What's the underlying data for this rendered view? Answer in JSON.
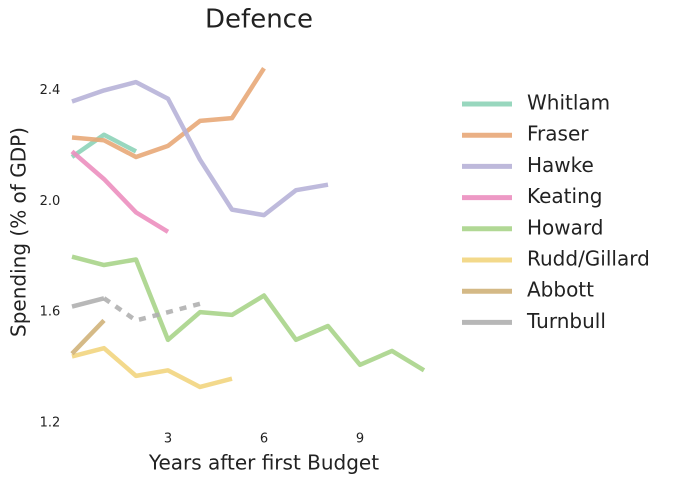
{
  "chart_data": {
    "type": "line",
    "title": "Defence",
    "x_label": "Years after first Budget",
    "y_label": "Spending (% of GDP)",
    "x": [
      0,
      1,
      2,
      3,
      4,
      5,
      6,
      7,
      8,
      9,
      10,
      11
    ],
    "xlim": [
      0,
      11
    ],
    "ylim": [
      1.2,
      2.6
    ],
    "xticks": [
      3,
      6,
      9
    ],
    "yticks": [
      1.2,
      1.6,
      {
        "value": 2,
        "label": "2.0"
      },
      2.4
    ],
    "grid": false,
    "legend": "right",
    "series": [
      {
        "name": "Whitlam",
        "color": "#8dd3b8",
        "values": [
          2.16,
          2.24,
          2.18,
          null,
          null,
          null,
          null,
          null,
          null,
          null,
          null,
          null
        ]
      },
      {
        "name": "Fraser",
        "color": "#e8a878",
        "values": [
          2.23,
          2.22,
          2.16,
          2.2,
          2.29,
          2.3,
          2.48,
          null,
          null,
          null,
          null,
          null
        ]
      },
      {
        "name": "Hawke",
        "color": "#b7b2d8",
        "values": [
          2.36,
          2.4,
          2.43,
          2.37,
          2.15,
          1.97,
          1.95,
          2.04,
          2.06,
          null,
          null,
          null
        ]
      },
      {
        "name": "Keating",
        "color": "#ec8fbf",
        "values": [
          2.18,
          2.08,
          1.96,
          1.89,
          null,
          null,
          null,
          null,
          null,
          null,
          null,
          null
        ]
      },
      {
        "name": "Howard",
        "color": "#a9d48a",
        "values": [
          1.8,
          1.77,
          1.79,
          1.5,
          1.6,
          1.59,
          1.66,
          1.5,
          1.55,
          1.41,
          1.46,
          1.39
        ]
      },
      {
        "name": "Rudd/Gillard",
        "color": "#f2d57f",
        "values": [
          1.44,
          1.47,
          1.37,
          1.39,
          1.33,
          1.36,
          null,
          null,
          null,
          null,
          null,
          null
        ]
      },
      {
        "name": "Abbott",
        "color": "#d0b27a",
        "values": [
          1.45,
          1.57,
          null,
          null,
          null,
          null,
          null,
          null,
          null,
          null,
          null,
          null
        ]
      },
      {
        "name": "Turnbull",
        "color": "#b0b0b0",
        "values": [
          1.62,
          1.65,
          1.57,
          1.6,
          1.63,
          null,
          null,
          null,
          null,
          null,
          null,
          null
        ],
        "dashed_from": 1
      }
    ]
  }
}
